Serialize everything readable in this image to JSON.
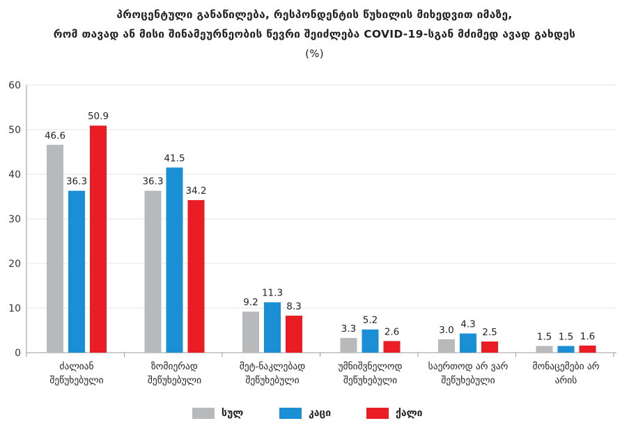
{
  "title": {
    "line1": "პროცენტული განაწილება, რესპონდენტის წუხილის მიხედვით იმაზე,",
    "line2": "რომ თავად ან მისი შინამეურნეობის წევრი  შეიძლება COVID-19-სგან მძიმედ ავად გახდეს",
    "line3": "(%)"
  },
  "colors": {
    "total": "#b7b9bb",
    "male": "#1b8fd6",
    "female": "#ea1c24",
    "grid": "#e3e3e3",
    "axis": "#9a9a9a"
  },
  "chart_data": {
    "type": "bar",
    "title": "პროცენტული განაწილება, რესპონდენტის წუხილის მიხედვით იმაზე, რომ თავად ან მისი შინამეურნეობის წევრი შეიძლება COVID-19-სგან მძიმედ ავად გახდეს (%)",
    "ylim": [
      0,
      60
    ],
    "yticks": [
      0,
      10,
      20,
      30,
      40,
      50,
      60
    ],
    "categories": [
      [
        "ძალიან",
        "შეწუხებული"
      ],
      [
        "ზომიერად",
        "შეწუხებული"
      ],
      [
        "მეტ-ნაკლებად",
        "შეწუხებული"
      ],
      [
        "უმნიშვნელოდ",
        "შეწუხებული"
      ],
      [
        "საერთოდ არ ვარ",
        "შეწუხებული"
      ],
      [
        "მონაცემები არ",
        "არის"
      ]
    ],
    "series": [
      {
        "name": "სულ",
        "color": "#b7b9bb",
        "values": [
          46.6,
          36.3,
          9.2,
          3.3,
          3.0,
          1.5
        ]
      },
      {
        "name": "კაცი",
        "color": "#1b8fd6",
        "values": [
          36.3,
          41.5,
          11.3,
          5.2,
          4.3,
          1.5
        ]
      },
      {
        "name": "ქალი",
        "color": "#ea1c24",
        "values": [
          50.9,
          34.2,
          8.3,
          2.6,
          2.5,
          1.6
        ]
      }
    ],
    "legend_position": "bottom-center",
    "grid": true
  }
}
